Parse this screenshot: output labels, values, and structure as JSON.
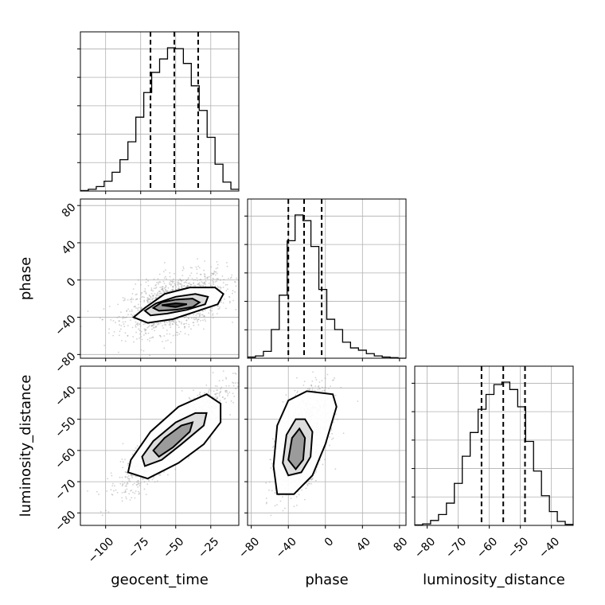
{
  "chart_data": {
    "type": "corner",
    "parameters": [
      "geocent_time",
      "phase",
      "luminosity_distance"
    ],
    "ticks": {
      "geocent_time": [
        -100,
        -75,
        -50,
        -25
      ],
      "phase": [
        -80,
        -40,
        0,
        40,
        80
      ],
      "luminosity_distance": [
        -80,
        -70,
        -60,
        -50,
        -40
      ]
    },
    "tick_labels": {
      "geocent_time": [
        "−100",
        "−75",
        "−50",
        "−25"
      ],
      "phase": [
        "−80",
        "−40",
        "0",
        "40",
        "80"
      ],
      "luminosity_distance": [
        "−80",
        "−70",
        "−60",
        "−50",
        "−40"
      ]
    },
    "ranges": {
      "geocent_time": [
        -118,
        -5
      ],
      "phase": [
        -84,
        87
      ],
      "luminosity_distance": [
        -84,
        -33
      ]
    },
    "quantiles": {
      "geocent_time": [
        -68,
        -51,
        -34
      ],
      "phase": [
        -40,
        -23,
        -4
      ],
      "luminosity_distance": [
        -62.5,
        -55.5,
        -48.5
      ]
    },
    "histograms": {
      "geocent_time": {
        "edges": [
          -118,
          -112.35,
          -106.7,
          -101.05,
          -95.4,
          -89.75,
          -84.1,
          -78.45,
          -72.8,
          -67.15,
          -61.5,
          -55.85,
          -50.2,
          -44.55,
          -38.9,
          -33.25,
          -27.6,
          -21.95,
          -16.3,
          -10.65,
          -5
        ],
        "counts": [
          1,
          4,
          10,
          22,
          42,
          70,
          110,
          165,
          220,
          265,
          295,
          320,
          318,
          285,
          235,
          180,
          120,
          60,
          20,
          4
        ]
      },
      "phase": {
        "edges": [
          -84,
          -75.45,
          -66.9,
          -58.35,
          -49.8,
          -41.25,
          -32.7,
          -24.15,
          -15.6,
          -7.05,
          1.5,
          10.05,
          18.6,
          27.15,
          35.7,
          44.25,
          52.8,
          61.35,
          69.9,
          78.45,
          87
        ],
        "counts": [
          2,
          4,
          12,
          50,
          110,
          205,
          250,
          240,
          195,
          120,
          68,
          50,
          28,
          18,
          14,
          8,
          4,
          2,
          1,
          0
        ]
      },
      "luminosity_distance": {
        "edges": [
          -84,
          -81.45,
          -78.9,
          -76.35,
          -73.8,
          -71.25,
          -68.7,
          -66.15,
          -63.6,
          -61.05,
          -58.5,
          -55.95,
          -53.4,
          -50.85,
          -48.3,
          -45.75,
          -43.2,
          -40.65,
          -38.1,
          -35.55,
          -33
        ],
        "counts": [
          1,
          3,
          10,
          22,
          45,
          85,
          140,
          188,
          235,
          265,
          285,
          290,
          275,
          240,
          170,
          110,
          60,
          28,
          8,
          2
        ]
      }
    },
    "densities": [
      {
        "x": "geocent_time",
        "y": "phase",
        "center": [
          -50,
          -25
        ],
        "sd": [
          18,
          16
        ],
        "rho": 0.45,
        "contours": [
          [
            [
              -80,
              -40
            ],
            [
              -72,
              -30
            ],
            [
              -58,
              -15
            ],
            [
              -40,
              -8
            ],
            [
              -22,
              -8
            ],
            [
              -16,
              -15
            ],
            [
              -20,
              -26
            ],
            [
              -36,
              -34
            ],
            [
              -52,
              -42
            ],
            [
              -70,
              -46
            ]
          ],
          [
            [
              -72,
              -33
            ],
            [
              -64,
              -25
            ],
            [
              -50,
              -18
            ],
            [
              -36,
              -15
            ],
            [
              -27,
              -18
            ],
            [
              -29,
              -26
            ],
            [
              -42,
              -32
            ],
            [
              -56,
              -36
            ],
            [
              -68,
              -38
            ]
          ],
          [
            [
              -66,
              -30
            ],
            [
              -60,
              -24
            ],
            [
              -50,
              -21
            ],
            [
              -38,
              -20
            ],
            [
              -33,
              -24
            ],
            [
              -38,
              -29
            ],
            [
              -50,
              -32
            ],
            [
              -62,
              -33
            ]
          ],
          [
            [
              -60,
              -27
            ],
            [
              -50,
              -25
            ],
            [
              -42,
              -26
            ],
            [
              -50,
              -29
            ]
          ]
        ]
      },
      {
        "x": "geocent_time",
        "y": "luminosity_distance",
        "center": [
          -52,
          -56
        ],
        "sd": [
          18,
          8
        ],
        "rho": 0.9,
        "contours": [
          [
            [
              -84,
              -67
            ],
            [
              -82,
              -63
            ],
            [
              -68,
              -54
            ],
            [
              -48,
              -46
            ],
            [
              -28,
              -42
            ],
            [
              -18,
              -45
            ],
            [
              -18,
              -51
            ],
            [
              -30,
              -58
            ],
            [
              -48,
              -64
            ],
            [
              -70,
              -69
            ]
          ],
          [
            [
              -74,
              -62
            ],
            [
              -66,
              -57
            ],
            [
              -50,
              -51
            ],
            [
              -36,
              -48
            ],
            [
              -28,
              -48
            ],
            [
              -30,
              -52
            ],
            [
              -46,
              -58
            ],
            [
              -60,
              -63
            ],
            [
              -72,
              -65
            ]
          ],
          [
            [
              -66,
              -60
            ],
            [
              -58,
              -56
            ],
            [
              -46,
              -52
            ],
            [
              -38,
              -51
            ],
            [
              -40,
              -54
            ],
            [
              -52,
              -59
            ],
            [
              -62,
              -62
            ]
          ]
        ]
      },
      {
        "x": "phase",
        "y": "luminosity_distance",
        "center": [
          -25,
          -57
        ],
        "sd": [
          14,
          8
        ],
        "rho": 0.55,
        "contours": [
          [
            [
              -56,
              -65
            ],
            [
              -52,
              -52
            ],
            [
              -40,
              -44
            ],
            [
              -20,
              -41
            ],
            [
              8,
              -42
            ],
            [
              12,
              -46
            ],
            [
              0,
              -58
            ],
            [
              -14,
              -68
            ],
            [
              -34,
              -74
            ],
            [
              -52,
              -74
            ]
          ],
          [
            [
              -46,
              -64
            ],
            [
              -42,
              -55
            ],
            [
              -32,
              -50
            ],
            [
              -22,
              -50
            ],
            [
              -14,
              -54
            ],
            [
              -16,
              -62
            ],
            [
              -26,
              -67
            ],
            [
              -40,
              -68
            ]
          ],
          [
            [
              -40,
              -63
            ],
            [
              -36,
              -56
            ],
            [
              -28,
              -53
            ],
            [
              -22,
              -56
            ],
            [
              -24,
              -63
            ],
            [
              -32,
              -66
            ]
          ]
        ]
      }
    ],
    "grid": true
  }
}
